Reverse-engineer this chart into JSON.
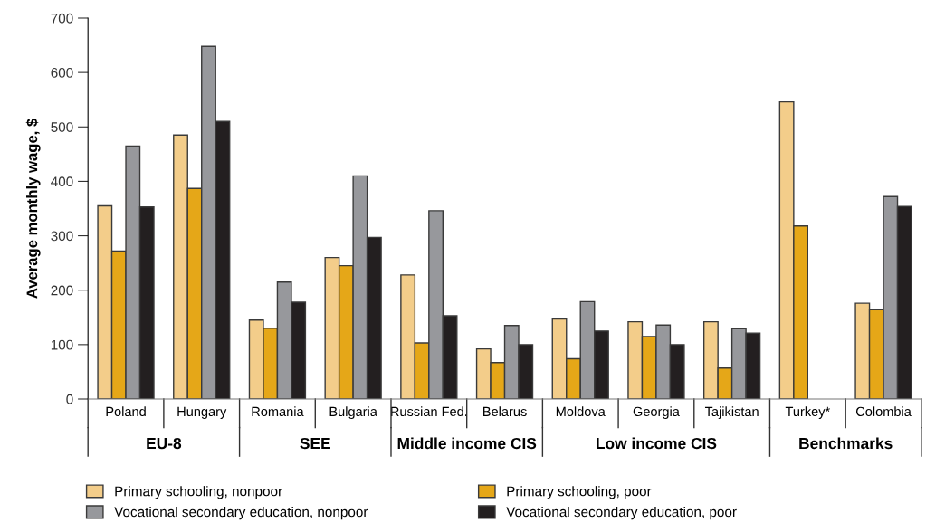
{
  "chart_data": {
    "type": "bar",
    "ylabel": "Average monthly wage, $",
    "categories": [
      "Poland",
      "Hungary",
      "Romania",
      "Bulgaria",
      "Russian Fed.",
      "Belarus",
      "Moldova",
      "Georgia",
      "Tajikistan",
      "Turkey*",
      "Colombia"
    ],
    "series": [
      {
        "name": "Primary schooling, nonpoor",
        "color": "#f3cd8a",
        "values": [
          355,
          485,
          145,
          260,
          228,
          92,
          147,
          142,
          142,
          546,
          176
        ]
      },
      {
        "name": "Primary schooling, poor",
        "color": "#e5a718",
        "values": [
          272,
          387,
          130,
          245,
          103,
          67,
          74,
          115,
          57,
          318,
          164
        ]
      },
      {
        "name": "Vocational secondary education, nonpoor",
        "color": "#97989c",
        "values": [
          465,
          648,
          215,
          410,
          346,
          135,
          179,
          136,
          129,
          null,
          372
        ]
      },
      {
        "name": "Vocational secondary education, poor",
        "color": "#231f20",
        "values": [
          353,
          510,
          178,
          297,
          153,
          100,
          125,
          100,
          121,
          null,
          354
        ]
      }
    ],
    "annotations": [
      "EU-8",
      "SEE",
      "Middle income CIS",
      "Low income CIS",
      "Benchmarks"
    ],
    "ylim": [
      0,
      700
    ],
    "yticks": [
      0,
      100,
      200,
      300,
      400,
      500,
      600,
      700
    ],
    "grid": false,
    "legend": "bottom"
  }
}
